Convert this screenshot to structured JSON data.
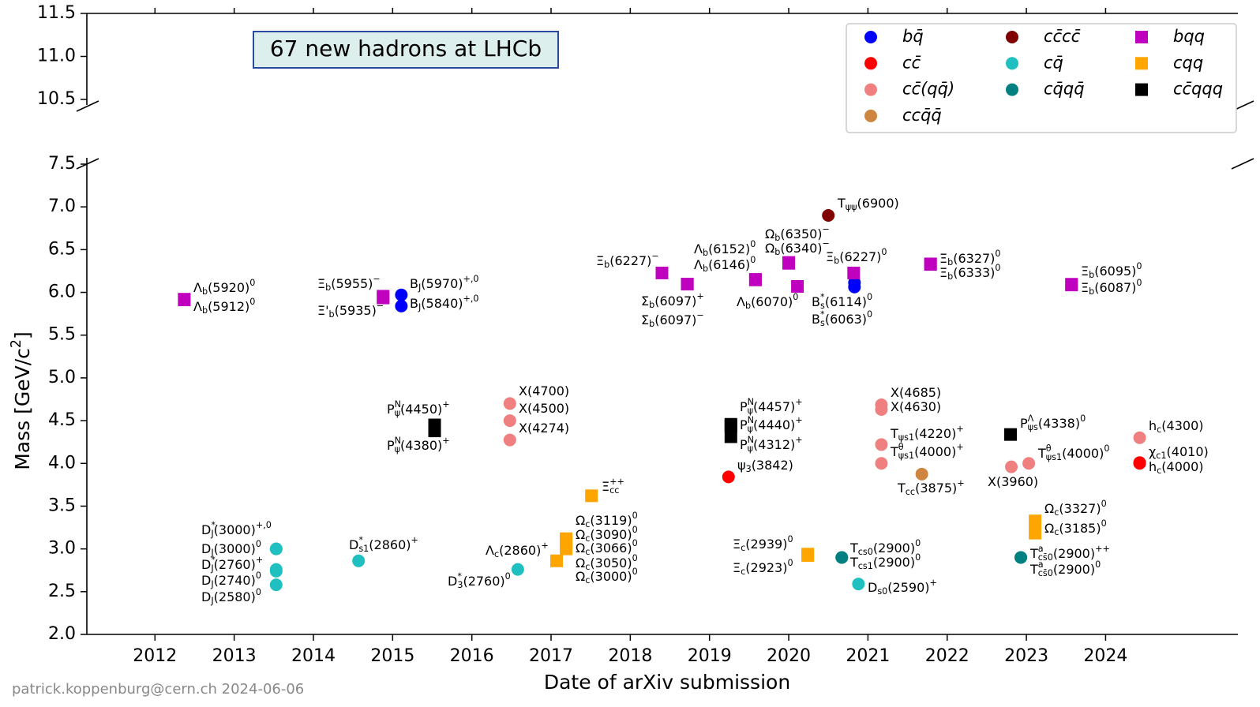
{
  "chart_data": {
    "type": "scatter",
    "annotation": "67 new hadrons at LHCb",
    "x_label": "Date of arXiv submission",
    "y_label": "Mass [GeV/c^{2}]",
    "footer": "patrick.koppenburg@cern.ch 2024-06-06",
    "xlim": [
      2011.14,
      2025.67
    ],
    "xticks": [
      2012,
      2013,
      2014,
      2015,
      2016,
      2017,
      2018,
      2019,
      2020,
      2021,
      2022,
      2023,
      2024
    ],
    "ylim": [
      2.0,
      7.5
    ],
    "yticks": [
      {
        "value": 2,
        "label": "2.0"
      },
      {
        "value": 2.5,
        "label": "2.5"
      },
      {
        "value": 3,
        "label": "3.0"
      },
      {
        "value": 3.5,
        "label": "3.5"
      },
      {
        "value": 4,
        "label": "4.0"
      },
      {
        "value": 4.5,
        "label": "4.5"
      },
      {
        "value": 5,
        "label": "5.0"
      },
      {
        "value": 5.5,
        "label": "5.5"
      },
      {
        "value": 6,
        "label": "6.0"
      },
      {
        "value": 6.5,
        "label": "6.5"
      },
      {
        "value": 7,
        "label": "7.0"
      },
      {
        "value": 7.5,
        "label": "7.5"
      }
    ],
    "upper_ylim": [
      10.5,
      11.5
    ],
    "upper_yticks": [
      {
        "value": 10.5,
        "label": "10.5"
      },
      {
        "value": 11,
        "label": "11.0"
      },
      {
        "value": 11.5,
        "label": "11.5"
      }
    ],
    "grid": false,
    "legend": "upper right",
    "series": [
      {
        "name": "bq̄",
        "color": "#0000ff",
        "marker": "circle",
        "x": [
          2015.11,
          2015.11,
          2020.83,
          2020.83
        ],
        "values": [
          5.97,
          5.84,
          6.114,
          6.063
        ],
        "labels": [
          "B_{J}(5970)^{+,0}",
          "B_{J}(5840)^{+,0}",
          "B^{*}_{s}(6114)^{0}",
          "B^{*}_{s}(6063)^{0}"
        ]
      },
      {
        "name": "cc̄",
        "color": "#ff0000",
        "marker": "circle",
        "x": [
          2019.24,
          2024.43,
          2024.43
        ],
        "values": [
          3.842,
          4.01,
          4.0
        ],
        "labels": [
          "ψ_{3}(3842)",
          "χ_{c1}(4010)",
          "h_{c}(4000)"
        ]
      },
      {
        "name": "cc̄(qq̄)",
        "color": "#f08080",
        "marker": "circle",
        "x": [
          2016.48,
          2016.48,
          2016.48,
          2021.17,
          2021.17,
          2021.17,
          2021.17,
          2022.81,
          2023.03,
          2024.43
        ],
        "values": [
          4.7,
          4.5,
          4.274,
          4.685,
          4.63,
          4.22,
          4.0,
          3.96,
          4.0,
          4.3
        ],
        "labels": [
          "X(4700)",
          "X(4500)",
          "X(4274)",
          "X(4685)",
          "X(4630)",
          "T_{ψs1}(4220)^{+}",
          "T^{θ}_{ψs1}(4000)^{+}",
          "X(3960)",
          "T^{θ}_{ψs1}(4000)^{0}",
          "h_{c}(4300)"
        ]
      },
      {
        "name": "ccq̄q̄",
        "color": "#cd853f",
        "marker": "circle",
        "x": [
          2021.68
        ],
        "values": [
          3.875
        ],
        "labels": [
          "T_{cc}(3875)^{+}"
        ]
      },
      {
        "name": "cc̄cc̄",
        "color": "#800000",
        "marker": "circle",
        "x": [
          2020.5
        ],
        "values": [
          6.9
        ],
        "labels": [
          "T_{ψψ}(6900)"
        ]
      },
      {
        "name": "cq̄",
        "color": "#20c0c0",
        "marker": "circle",
        "x": [
          2013.53,
          2013.53,
          2013.53,
          2013.53,
          2013.53,
          2014.57,
          2016.58,
          2020.88
        ],
        "values": [
          3.0,
          3.0,
          2.76,
          2.74,
          2.58,
          2.86,
          2.76,
          2.59
        ],
        "labels": [
          "D^{*}_{J}(3000)^{+,0}",
          "D_{J}(3000)^{0}",
          "D^{*}_{J}(2760)^{+}",
          "D_{J}(2740)^{0}",
          "D_{J}(2580)^{0}",
          "D^{*}_{s1}(2860)^{+}",
          "D^{*}_{3}(2760)^{0}",
          "D_{s0}(2590)^{+}"
        ]
      },
      {
        "name": "cq̄qq̄",
        "color": "#008080",
        "marker": "circle",
        "x": [
          2020.67,
          2020.67,
          2022.93,
          2022.93
        ],
        "values": [
          2.9,
          2.9,
          2.9,
          2.9
        ],
        "labels": [
          "T_{cs0}(2900)^{0}",
          "T_{cs1}(2900)^{0}",
          "T^{a}_{cs̄0}(2900)^{++}",
          "T^{a}_{cs̄0}(2900)^{0}"
        ]
      },
      {
        "name": "bqq",
        "color": "#bf00bf",
        "marker": "square",
        "x": [
          2012.37,
          2012.37,
          2014.88,
          2014.88,
          2018.4,
          2018.72,
          2018.72,
          2019.58,
          2019.58,
          2020.0,
          2020.0,
          2020.11,
          2020.82,
          2021.79,
          2021.79,
          2023.57,
          2023.57
        ],
        "values": [
          5.92,
          5.912,
          5.955,
          5.935,
          6.227,
          6.097,
          6.097,
          6.152,
          6.146,
          6.35,
          6.34,
          6.07,
          6.227,
          6.327,
          6.333,
          6.095,
          6.087
        ],
        "labels": [
          "Λ_{b}(5920)^{0}",
          "Λ_{b}(5912)^{0}",
          "Ξ_{b}(5955)^{−}",
          "Ξ'_{b}(5935)^{−}",
          "Ξ_{b}(6227)^{−}",
          "Σ_{b}(6097)^{+}",
          "Σ_{b}(6097)^{−}",
          "Λ_{b}(6152)^{0}",
          "Λ_{b}(6146)^{0}",
          "Ω_{b}(6350)^{−}",
          "Ω_{b}(6340)^{−}",
          "Λ_{b}(6070)^{0}",
          "Ξ_{b}(6227)^{0}",
          "Ξ_{b}(6327)^{0}",
          "Ξ_{b}(6333)^{0}",
          "Ξ_{b}(6095)^{0}",
          "Ξ_{b}(6087)^{0}"
        ]
      },
      {
        "name": "cqq",
        "color": "#ffa500",
        "marker": "square",
        "x": [
          2017.51,
          2017.19,
          2017.19,
          2017.19,
          2017.19,
          2017.19,
          2017.07,
          2020.24,
          2020.24,
          2023.11,
          2023.11
        ],
        "values": [
          3.621,
          3.119,
          3.09,
          3.066,
          3.05,
          3.0,
          2.86,
          2.939,
          2.923,
          3.327,
          3.185
        ],
        "labels": [
          "Ξ^{++}_{cc}",
          "Ω_{c}(3119)^{0}",
          "Ω_{c}(3090)^{0}",
          "Ω_{c}(3066)^{0}",
          "Ω_{c}(3050)^{0}",
          "Ω_{c}(3000)^{0}",
          "Λ_{c}(2860)^{+}",
          "Ξ_{c}(2939)^{0}",
          "Ξ_{c}(2923)^{0}",
          "Ω_{c}(3327)^{0}",
          "Ω_{c}(3185)^{0}"
        ]
      },
      {
        "name": "cc̄qqq",
        "color": "#000000",
        "marker": "square",
        "x": [
          2015.53,
          2015.53,
          2019.27,
          2019.27,
          2019.27,
          2022.8
        ],
        "values": [
          4.45,
          4.38,
          4.457,
          4.44,
          4.312,
          4.338
        ],
        "labels": [
          "P^{N}_{ψ}(4450)^{+}",
          "P^{N}_{ψ}(4380)^{+}",
          "P^{N}_{ψ}(4457)^{+}",
          "P^{N}_{ψ}(4440)^{+}",
          "P^{N}_{ψ}(4312)^{+}",
          "P^{Λ}_{ψs}(4338)^{0}"
        ]
      }
    ]
  }
}
